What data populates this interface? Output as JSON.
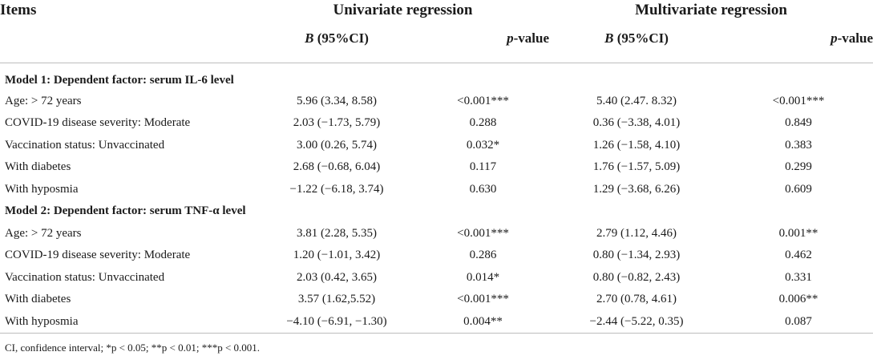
{
  "header": {
    "items": "Items",
    "univariate": "Univariate regression",
    "multivariate": "Multivariate regression",
    "b_ci_b": "B",
    "b_ci_rest": " (95%CI)",
    "p_italic": "p",
    "p_rest": "-value"
  },
  "models": [
    {
      "title": "Model 1: Dependent factor: serum IL-6 level",
      "rows": [
        {
          "item": "Age: > 72 years",
          "uni_b": "5.96 (3.34, 8.58)",
          "uni_p": "<0.001***",
          "mul_b": "5.40 (2.47. 8.32)",
          "mul_p": "<0.001***"
        },
        {
          "item": "COVID-19 disease severity: Moderate",
          "uni_b": "2.03 (−1.73, 5.79)",
          "uni_p": "0.288",
          "mul_b": "0.36 (−3.38, 4.01)",
          "mul_p": "0.849"
        },
        {
          "item": "Vaccination status: Unvaccinated",
          "uni_b": "3.00 (0.26, 5.74)",
          "uni_p": "0.032*",
          "mul_b": "1.26 (−1.58, 4.10)",
          "mul_p": "0.383"
        },
        {
          "item": "With diabetes",
          "uni_b": "2.68 (−0.68, 6.04)",
          "uni_p": "0.117",
          "mul_b": "1.76 (−1.57, 5.09)",
          "mul_p": "0.299"
        },
        {
          "item": "With hyposmia",
          "uni_b": "−1.22 (−6.18, 3.74)",
          "uni_p": "0.630",
          "mul_b": "1.29 (−3.68, 6.26)",
          "mul_p": "0.609"
        }
      ]
    },
    {
      "title": "Model 2: Dependent factor: serum TNF-α level",
      "rows": [
        {
          "item": "Age: > 72 years",
          "uni_b": "3.81 (2.28, 5.35)",
          "uni_p": "<0.001***",
          "mul_b": "2.79 (1.12, 4.46)",
          "mul_p": "0.001**"
        },
        {
          "item": "COVID-19 disease severity: Moderate",
          "uni_b": "1.20 (−1.01, 3.42)",
          "uni_p": "0.286",
          "mul_b": "0.80 (−1.34, 2.93)",
          "mul_p": "0.462"
        },
        {
          "item": "Vaccination status: Unvaccinated",
          "uni_b": "2.03 (0.42, 3.65)",
          "uni_p": "0.014*",
          "mul_b": "0.80 (−0.82, 2.43)",
          "mul_p": "0.331"
        },
        {
          "item": "With diabetes",
          "uni_b": "3.57 (1.62,5.52)",
          "uni_p": "<0.001***",
          "mul_b": "2.70 (0.78, 4.61)",
          "mul_p": "0.006**"
        },
        {
          "item": "With hyposmia",
          "uni_b": "−4.10 (−6.91, −1.30)",
          "uni_p": "0.004**",
          "mul_b": "−2.44 (−5.22, 0.35)",
          "mul_p": "0.087"
        }
      ]
    }
  ],
  "footnote": "CI, confidence interval; *p < 0.05; **p < 0.01; ***p < 0.001."
}
